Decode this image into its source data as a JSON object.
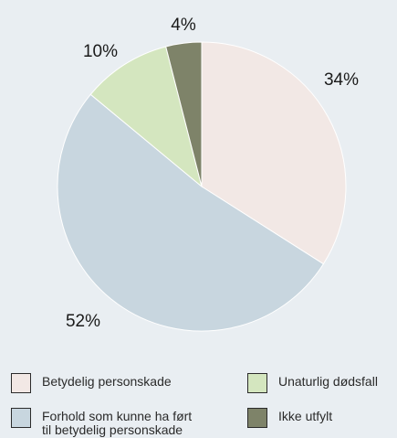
{
  "chart_data": {
    "type": "pie",
    "title": "",
    "start_angle_deg": 0,
    "direction": "clockwise",
    "slices": [
      {
        "label": "Betydelig personskade",
        "value": 34,
        "display": "34%",
        "color": "#f2e8e5"
      },
      {
        "label": "Forhold som kunne ha ført\ntil betydelig personskade",
        "value": 52,
        "display": "52%",
        "color": "#c8d6df"
      },
      {
        "label": "Unaturlig dødsfall",
        "value": 10,
        "display": "10%",
        "color": "#d4e6bf"
      },
      {
        "label": "Ikke utfylt",
        "value": 4,
        "display": "4%",
        "color": "#7e8369"
      }
    ],
    "legend_position": "bottom"
  }
}
